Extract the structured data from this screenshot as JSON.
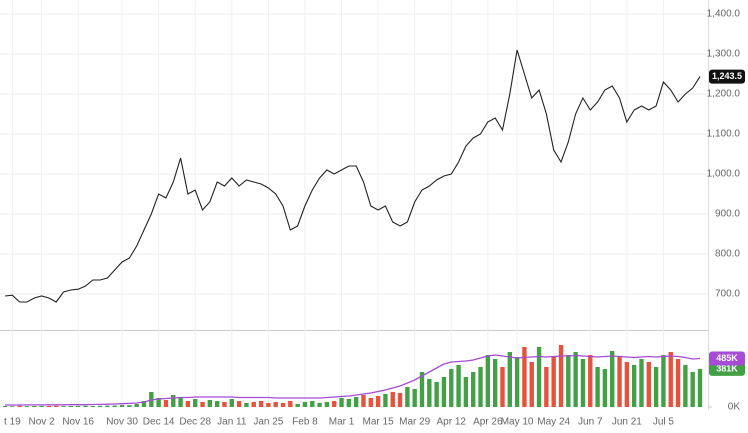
{
  "chart_data": [
    {
      "type": "line",
      "series": [
        {
          "color": "#222222",
          "values": [
            695,
            697,
            680,
            680,
            690,
            695,
            690,
            680,
            705,
            710,
            712,
            720,
            735,
            735,
            740,
            760,
            780,
            790,
            820,
            860,
            900,
            950,
            940,
            980,
            1040,
            950,
            960,
            910,
            930,
            980,
            970,
            990,
            970,
            985,
            980,
            975,
            965,
            950,
            920,
            860,
            870,
            920,
            960,
            990,
            1010,
            1000,
            1010,
            1020,
            1020,
            980,
            920,
            910,
            920,
            880,
            870,
            880,
            930,
            960,
            970,
            985,
            995,
            1000,
            1030,
            1070,
            1090,
            1100,
            1130,
            1140,
            1110,
            1200,
            1310,
            1250,
            1190,
            1210,
            1150,
            1060,
            1030,
            1080,
            1150,
            1190,
            1160,
            1180,
            1210,
            1220,
            1190,
            1130,
            1160,
            1170,
            1160,
            1170,
            1230,
            1210,
            1180,
            1200,
            1215,
            1243.5
          ],
          "value_labels": [
            null,
            null,
            null,
            null,
            null,
            null,
            null,
            null,
            null,
            null,
            null,
            null,
            null,
            null,
            null,
            null,
            null,
            null,
            null,
            null,
            null,
            null,
            null,
            null,
            null,
            null,
            null,
            null,
            null,
            null,
            null,
            null,
            null,
            null,
            null,
            null,
            null,
            null,
            null,
            null,
            null,
            null,
            null,
            null,
            null,
            null,
            null,
            null,
            null,
            null,
            null,
            null,
            null,
            null,
            null,
            null,
            null,
            null,
            null,
            null,
            null,
            null,
            null,
            null,
            null,
            null,
            null,
            null,
            null,
            null,
            null,
            null,
            null,
            null,
            null,
            null,
            null,
            null,
            null,
            null,
            null,
            null,
            null,
            null,
            null,
            null,
            null,
            null,
            null,
            null,
            null,
            null,
            null,
            null,
            null,
            "1,243.5"
          ]
        }
      ],
      "ylim": [
        610,
        1435
      ],
      "yticks": [
        {
          "value": 700,
          "label": "700.0"
        },
        {
          "value": 800,
          "label": "800.0"
        },
        {
          "value": 900,
          "label": "900.0"
        },
        {
          "value": 1000,
          "label": "1,000.0"
        },
        {
          "value": 1100,
          "label": "1,100.0"
        },
        {
          "value": 1200,
          "label": "1,200.0"
        },
        {
          "value": 1300,
          "label": "1,300.0"
        },
        {
          "value": 1400,
          "label": "1,400.0"
        }
      ],
      "grid": true
    },
    {
      "type": "bar",
      "categories": [
        null,
        "t 19",
        null,
        null,
        null,
        "Nov 2",
        null,
        null,
        null,
        null,
        "Nov 16",
        null,
        null,
        null,
        null,
        null,
        "Nov 30",
        null,
        null,
        null,
        null,
        "Dec 14",
        null,
        null,
        null,
        null,
        "Dec 28",
        null,
        null,
        null,
        null,
        "Jan 11",
        null,
        null,
        null,
        null,
        "Jan 25",
        null,
        null,
        null,
        null,
        "Feb 8",
        null,
        null,
        null,
        null,
        "Mar 1",
        null,
        null,
        null,
        null,
        "Mar 15",
        null,
        null,
        null,
        null,
        "Mar 29",
        null,
        null,
        null,
        null,
        "Apr 12",
        null,
        null,
        null,
        null,
        "Apr 26",
        null,
        null,
        null,
        "May 10",
        null,
        null,
        null,
        null,
        "May 24",
        null,
        null,
        null,
        null,
        "Jun 7",
        null,
        null,
        null,
        null,
        "Jun 21",
        null,
        null,
        null,
        null,
        "Jul 5",
        null,
        null,
        null,
        null,
        null
      ],
      "up_color": "#43a047",
      "down_color": "#e5533d",
      "series": [
        {
          "color": "#43a047",
          "values": [
            10,
            8,
            12,
            9,
            10,
            11,
            10,
            12,
            9,
            10,
            11,
            13,
            10,
            12,
            14,
            15,
            20,
            18,
            30,
            60,
            150,
            90,
            70,
            120,
            100,
            60,
            80,
            50,
            70,
            60,
            50,
            80,
            60,
            40,
            50,
            60,
            40,
            50,
            40,
            60,
            30,
            50,
            60,
            40,
            50,
            60,
            90,
            80,
            100,
            120,
            90,
            110,
            130,
            150,
            140,
            200,
            180,
            350,
            280,
            250,
            300,
            380,
            420,
            300,
            350,
            400,
            520,
            480,
            400,
            550,
            500,
            600,
            450,
            600,
            400,
            500,
            620,
            520,
            550,
            480,
            520,
            400,
            380,
            560,
            500,
            450,
            420,
            480,
            450,
            400,
            520,
            550,
            480,
            420,
            350,
            381
          ],
          "value_labels": [
            null,
            null,
            null,
            null,
            null,
            null,
            null,
            null,
            null,
            null,
            null,
            null,
            null,
            null,
            null,
            null,
            null,
            null,
            null,
            null,
            null,
            null,
            null,
            null,
            null,
            null,
            null,
            null,
            null,
            null,
            null,
            null,
            null,
            null,
            null,
            null,
            null,
            null,
            null,
            null,
            null,
            null,
            null,
            null,
            null,
            null,
            null,
            null,
            null,
            null,
            null,
            null,
            null,
            null,
            null,
            null,
            null,
            null,
            null,
            null,
            null,
            null,
            null,
            null,
            null,
            null,
            null,
            null,
            null,
            null,
            null,
            null,
            null,
            null,
            null,
            null,
            null,
            null,
            null,
            null,
            null,
            null,
            null,
            null,
            null,
            null,
            null,
            null,
            null,
            null,
            null,
            null,
            null,
            null,
            null,
            "381K"
          ]
        },
        {
          "type": "line",
          "color": "#a64bd6",
          "values": [
            20,
            20,
            20,
            21,
            21,
            21,
            22,
            22,
            22,
            23,
            23,
            24,
            25,
            26,
            28,
            30,
            33,
            36,
            40,
            50,
            70,
            80,
            85,
            90,
            95,
            95,
            100,
            100,
            100,
            100,
            100,
            100,
            95,
            95,
            95,
            95,
            95,
            90,
            90,
            90,
            90,
            90,
            90,
            90,
            95,
            100,
            105,
            110,
            120,
            130,
            140,
            155,
            170,
            190,
            210,
            240,
            270,
            310,
            350,
            390,
            430,
            450,
            455,
            460,
            470,
            490,
            510,
            520,
            510,
            500,
            490,
            495,
            500,
            505,
            500,
            505,
            510,
            510,
            515,
            510,
            505,
            500,
            505,
            510,
            505,
            500,
            495,
            500,
            505,
            500,
            505,
            510,
            505,
            495,
            480,
            485
          ],
          "value_labels": [
            null,
            null,
            null,
            null,
            null,
            null,
            null,
            null,
            null,
            null,
            null,
            null,
            null,
            null,
            null,
            null,
            null,
            null,
            null,
            null,
            null,
            null,
            null,
            null,
            null,
            null,
            null,
            null,
            null,
            null,
            null,
            null,
            null,
            null,
            null,
            null,
            null,
            null,
            null,
            null,
            null,
            null,
            null,
            null,
            null,
            null,
            null,
            null,
            null,
            null,
            null,
            null,
            null,
            null,
            null,
            null,
            null,
            null,
            null,
            null,
            null,
            null,
            null,
            null,
            null,
            null,
            null,
            null,
            null,
            null,
            null,
            null,
            null,
            null,
            null,
            null,
            null,
            null,
            null,
            null,
            null,
            null,
            null,
            null,
            null,
            null,
            null,
            null,
            null,
            null,
            null,
            null,
            null,
            null,
            null,
            "485K"
          ]
        }
      ],
      "ylim": [
        0,
        750
      ],
      "yticks": [
        {
          "value": 0,
          "label": "0K"
        }
      ]
    }
  ]
}
